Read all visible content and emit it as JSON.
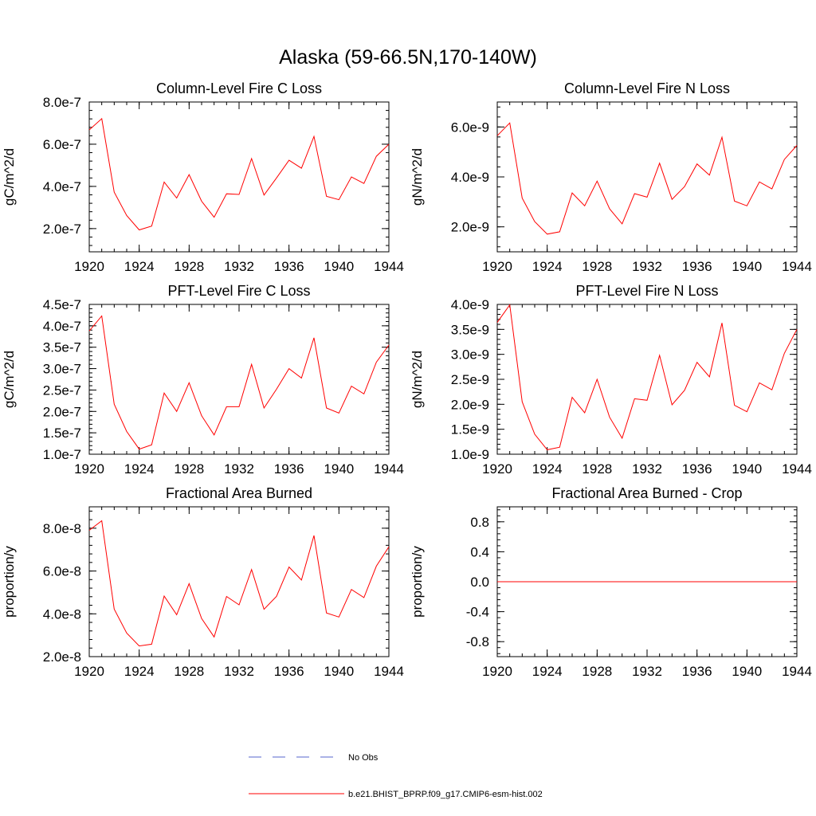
{
  "figure_title": "Alaska (59-66.5N,170-140W)",
  "colors": {
    "model_line": "#ff0000",
    "obs_line": "#5566cc",
    "frame": "#000000"
  },
  "legend": {
    "entries": [
      {
        "label": "No Obs",
        "style": "dashed",
        "color": "#5566cc"
      },
      {
        "label": "b.e21.BHIST_BPRP.f09_g17.CMIP6-esm-hist.002",
        "style": "solid",
        "color": "#ff0000"
      }
    ]
  },
  "chart_data": [
    {
      "type": "line",
      "title": "Column-Level Fire C Loss",
      "ylabel": "gC/m^2/d",
      "xlim": [
        1920,
        1944
      ],
      "x_ticks": [
        1920,
        1924,
        1928,
        1932,
        1936,
        1940,
        1944
      ],
      "x_tick_labels": [
        "1920",
        "1924",
        "1928",
        "1932",
        "1936",
        "1940",
        "1944"
      ],
      "ylim": [
        9e-08,
        8e-07
      ],
      "y_ticks": [
        2e-07,
        4e-07,
        6e-07,
        8e-07
      ],
      "y_tick_labels": [
        "2.0e-7",
        "4.0e-7",
        "6.0e-7",
        "8.0e-7"
      ],
      "x": [
        1920,
        1921,
        1922,
        1923,
        1924,
        1925,
        1926,
        1927,
        1928,
        1929,
        1930,
        1931,
        1932,
        1933,
        1934,
        1935,
        1936,
        1937,
        1938,
        1939,
        1940,
        1941,
        1942,
        1943,
        1944
      ],
      "series": [
        {
          "name": "b.e21.BHIST_BPRP.f09_g17.CMIP6-esm-hist.002",
          "values": [
            6.68e-07,
            7.21e-07,
            3.73e-07,
            2.62e-07,
            1.94e-07,
            2.12e-07,
            4.21e-07,
            3.45e-07,
            4.56e-07,
            3.3e-07,
            2.54e-07,
            3.65e-07,
            3.62e-07,
            5.32e-07,
            3.59e-07,
            4.4e-07,
            5.24e-07,
            4.86e-07,
            6.37e-07,
            3.53e-07,
            3.37e-07,
            4.45e-07,
            4.14e-07,
            5.43e-07,
            6e-07
          ]
        }
      ]
    },
    {
      "type": "line",
      "title": "Column-Level Fire N Loss",
      "ylabel": "gN/m^2/d",
      "xlim": [
        1920,
        1944
      ],
      "x_ticks": [
        1920,
        1924,
        1928,
        1932,
        1936,
        1940,
        1944
      ],
      "x_tick_labels": [
        "1920",
        "1924",
        "1928",
        "1932",
        "1936",
        "1940",
        "1944"
      ],
      "ylim": [
        1e-09,
        7e-09
      ],
      "y_ticks": [
        2e-09,
        4e-09,
        6e-09
      ],
      "y_tick_labels": [
        "2.0e-9",
        "4.0e-9",
        "6.0e-9"
      ],
      "x": [
        1920,
        1921,
        1922,
        1923,
        1924,
        1925,
        1926,
        1927,
        1928,
        1929,
        1930,
        1931,
        1932,
        1933,
        1934,
        1935,
        1936,
        1937,
        1938,
        1939,
        1940,
        1941,
        1942,
        1943,
        1944
      ],
      "series": [
        {
          "name": "b.e21.BHIST_BPRP.f09_g17.CMIP6-esm-hist.002",
          "values": [
            5.65e-09,
            6.16e-09,
            3.15e-09,
            2.21e-09,
            1.71e-09,
            1.8e-09,
            3.36e-09,
            2.84e-09,
            3.83e-09,
            2.72e-09,
            2.12e-09,
            3.33e-09,
            3.19e-09,
            4.55e-09,
            3.1e-09,
            3.61e-09,
            4.52e-09,
            4.07e-09,
            5.59e-09,
            3.03e-09,
            2.84e-09,
            3.8e-09,
            3.52e-09,
            4.7e-09,
            5.26e-09
          ]
        }
      ]
    },
    {
      "type": "line",
      "title": "PFT-Level Fire C Loss",
      "ylabel": "gC/m^2/d",
      "xlim": [
        1920,
        1944
      ],
      "x_ticks": [
        1920,
        1924,
        1928,
        1932,
        1936,
        1940,
        1944
      ],
      "x_tick_labels": [
        "1920",
        "1924",
        "1928",
        "1932",
        "1936",
        "1940",
        "1944"
      ],
      "ylim": [
        1e-07,
        4.5e-07
      ],
      "y_ticks": [
        1e-07,
        1.5e-07,
        2e-07,
        2.5e-07,
        3e-07,
        3.5e-07,
        4e-07,
        4.5e-07
      ],
      "y_tick_labels": [
        "1.0e-7",
        "1.5e-7",
        "2.0e-7",
        "2.5e-7",
        "3.0e-7",
        "3.5e-7",
        "4.0e-7",
        "4.5e-7"
      ],
      "x": [
        1920,
        1921,
        1922,
        1923,
        1924,
        1925,
        1926,
        1927,
        1928,
        1929,
        1930,
        1931,
        1932,
        1933,
        1934,
        1935,
        1936,
        1937,
        1938,
        1939,
        1940,
        1941,
        1942,
        1943,
        1944
      ],
      "series": [
        {
          "name": "b.e21.BHIST_BPRP.f09_g17.CMIP6-esm-hist.002",
          "values": [
            3.88e-07,
            4.23e-07,
            2.17e-07,
            1.53e-07,
            1.12e-07,
            1.22e-07,
            2.43e-07,
            2e-07,
            2.67e-07,
            1.9e-07,
            1.45e-07,
            2.11e-07,
            2.11e-07,
            3.1e-07,
            2.08e-07,
            2.52e-07,
            3e-07,
            2.78e-07,
            3.72e-07,
            2.08e-07,
            1.96e-07,
            2.59e-07,
            2.41e-07,
            3.15e-07,
            3.55e-07
          ]
        }
      ]
    },
    {
      "type": "line",
      "title": "PFT-Level Fire N Loss",
      "ylabel": "gN/m^2/d",
      "xlim": [
        1920,
        1944
      ],
      "x_ticks": [
        1920,
        1924,
        1928,
        1932,
        1936,
        1940,
        1944
      ],
      "x_tick_labels": [
        "1920",
        "1924",
        "1928",
        "1932",
        "1936",
        "1940",
        "1944"
      ],
      "ylim": [
        1e-09,
        4e-09
      ],
      "y_ticks": [
        1e-09,
        1.5e-09,
        2e-09,
        2.5e-09,
        3e-09,
        3.5e-09,
        4e-09
      ],
      "y_tick_labels": [
        "1.0e-9",
        "1.5e-9",
        "2.0e-9",
        "2.5e-9",
        "3.0e-9",
        "3.5e-9",
        "4.0e-9"
      ],
      "x": [
        1920,
        1921,
        1922,
        1923,
        1924,
        1925,
        1926,
        1927,
        1928,
        1929,
        1930,
        1931,
        1932,
        1933,
        1934,
        1935,
        1936,
        1937,
        1938,
        1939,
        1940,
        1941,
        1942,
        1943,
        1944
      ],
      "series": [
        {
          "name": "b.e21.BHIST_BPRP.f09_g17.CMIP6-esm-hist.002",
          "values": [
            3.64e-09,
            3.99e-09,
            2.05e-09,
            1.4e-09,
            1.09e-09,
            1.14e-09,
            2.14e-09,
            1.83e-09,
            2.5e-09,
            1.74e-09,
            1.32e-09,
            2.11e-09,
            2.08e-09,
            2.98e-09,
            1.99e-09,
            2.28e-09,
            2.84e-09,
            2.55e-09,
            3.63e-09,
            1.98e-09,
            1.85e-09,
            2.43e-09,
            2.29e-09,
            3.02e-09,
            3.5e-09
          ]
        }
      ]
    },
    {
      "type": "line",
      "title": "Fractional Area Burned",
      "ylabel": "proportion/y",
      "xlim": [
        1920,
        1944
      ],
      "x_ticks": [
        1920,
        1924,
        1928,
        1932,
        1936,
        1940,
        1944
      ],
      "x_tick_labels": [
        "1920",
        "1924",
        "1928",
        "1932",
        "1936",
        "1940",
        "1944"
      ],
      "ylim": [
        2e-08,
        9e-08
      ],
      "y_ticks": [
        2e-08,
        4e-08,
        6e-08,
        8e-08
      ],
      "y_tick_labels": [
        "2.0e-8",
        "4.0e-8",
        "6.0e-8",
        "8.0e-8"
      ],
      "x": [
        1920,
        1921,
        1922,
        1923,
        1924,
        1925,
        1926,
        1927,
        1928,
        1929,
        1930,
        1931,
        1932,
        1933,
        1934,
        1935,
        1936,
        1937,
        1938,
        1939,
        1940,
        1941,
        1942,
        1943,
        1944
      ],
      "series": [
        {
          "name": "b.e21.BHIST_BPRP.f09_g17.CMIP6-esm-hist.002",
          "values": [
            7.9e-08,
            8.35e-08,
            4.22e-08,
            3.1e-08,
            2.5e-08,
            2.58e-08,
            4.83e-08,
            3.96e-08,
            5.41e-08,
            3.78e-08,
            2.92e-08,
            4.81e-08,
            4.42e-08,
            6.07e-08,
            4.21e-08,
            4.82e-08,
            6.19e-08,
            5.58e-08,
            7.66e-08,
            4.04e-08,
            3.85e-08,
            5.14e-08,
            4.76e-08,
            6.23e-08,
            7.13e-08
          ]
        }
      ]
    },
    {
      "type": "line",
      "title": "Fractional Area Burned - Crop",
      "ylabel": "proportion/y",
      "xlim": [
        1920,
        1944
      ],
      "x_ticks": [
        1920,
        1924,
        1928,
        1932,
        1936,
        1940,
        1944
      ],
      "x_tick_labels": [
        "1920",
        "1924",
        "1928",
        "1932",
        "1936",
        "1940",
        "1944"
      ],
      "ylim": [
        -1.0,
        1.0
      ],
      "y_ticks": [
        -0.8,
        -0.4,
        0.0,
        0.4,
        0.8
      ],
      "y_tick_labels": [
        "-0.8",
        "-0.4",
        "0.0",
        "0.4",
        "0.8"
      ],
      "x": [
        1920,
        1921,
        1922,
        1923,
        1924,
        1925,
        1926,
        1927,
        1928,
        1929,
        1930,
        1931,
        1932,
        1933,
        1934,
        1935,
        1936,
        1937,
        1938,
        1939,
        1940,
        1941,
        1942,
        1943,
        1944
      ],
      "series": [
        {
          "name": "b.e21.BHIST_BPRP.f09_g17.CMIP6-esm-hist.002",
          "values": [
            0,
            0,
            0,
            0,
            0,
            0,
            0,
            0,
            0,
            0,
            0,
            0,
            0,
            0,
            0,
            0,
            0,
            0,
            0,
            0,
            0,
            0,
            0,
            0,
            0
          ]
        }
      ]
    }
  ]
}
